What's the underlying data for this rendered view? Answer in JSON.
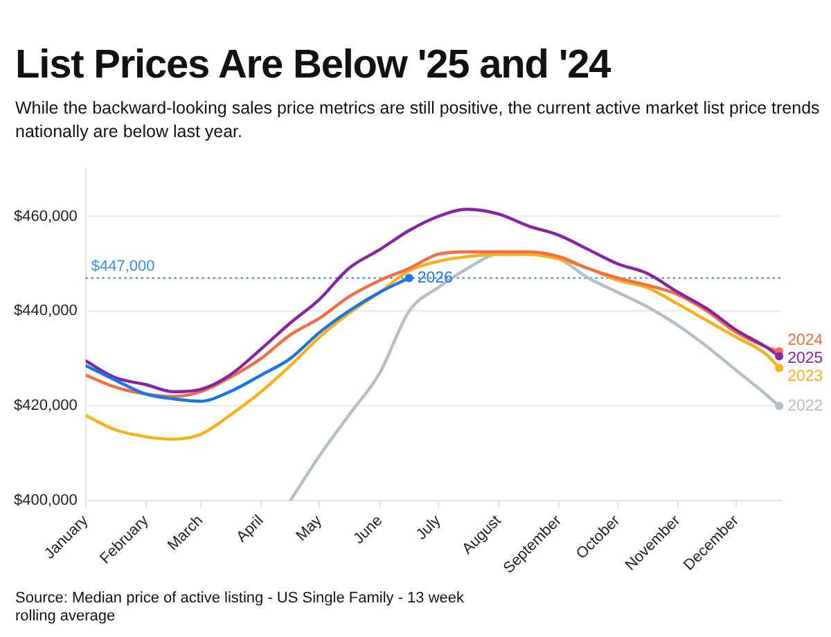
{
  "chart_data": {
    "type": "line",
    "title": "List Prices Are Below '25 and '24",
    "subtitle": "While the backward-looking sales price metrics are still positive, the current active market list price trends nationally are below last year.",
    "annotations": [
      "Source: Median price of active listing - US Single Family - 13 week rolling average"
    ],
    "x": [
      "--01-01",
      "--01-16",
      "--02-01",
      "--02-15",
      "--03-01",
      "--03-16",
      "--04-01",
      "--04-16",
      "--05-01",
      "--05-16",
      "--06-01",
      "--06-16",
      "--07-01",
      "--07-16",
      "--08-01",
      "--08-16",
      "--09-01",
      "--09-16",
      "--10-01",
      "--10-16",
      "--11-01",
      "--11-16",
      "--12-01",
      "--12-16",
      "--12-23"
    ],
    "series": [
      {
        "name": "2022",
        "color": "#b5bfc8",
        "x": [
          "--04-16",
          "--05-01",
          "--05-16",
          "--06-01",
          "--06-16",
          "--07-01",
          "--07-16",
          "--08-01",
          "--08-16",
          "--09-01",
          "--09-16",
          "--10-01",
          "--10-16",
          "--11-01",
          "--11-16",
          "--12-01",
          "--12-16",
          "--12-23"
        ],
        "values": [
          400000,
          409500,
          418000,
          427000,
          440000,
          445000,
          449000,
          452000,
          452000,
          451000,
          447000,
          444000,
          441000,
          437000,
          432500,
          427500,
          422500,
          420000
        ]
      },
      {
        "name": "2023",
        "color": "#fbb016",
        "values": [
          418000,
          415000,
          413500,
          413000,
          414000,
          418000,
          423000,
          428500,
          434500,
          439500,
          444000,
          448500,
          450500,
          451500,
          452000,
          452000,
          451000,
          449000,
          446500,
          445000,
          441500,
          438000,
          434500,
          431000,
          428000
        ]
      },
      {
        "name": "2024",
        "color": "#f46d43",
        "values": [
          426500,
          424000,
          422500,
          422000,
          423000,
          426000,
          430000,
          435000,
          438500,
          443000,
          446500,
          449000,
          452000,
          452500,
          452500,
          452500,
          451500,
          449000,
          447000,
          445500,
          443500,
          440000,
          435500,
          432500,
          431500
        ]
      },
      {
        "name": "2025",
        "color": "#8a22a8",
        "values": [
          429500,
          426000,
          424500,
          423000,
          423500,
          426500,
          432000,
          437500,
          442500,
          449000,
          453000,
          457000,
          460000,
          461500,
          460500,
          458000,
          456000,
          453000,
          450000,
          448000,
          444000,
          440500,
          436000,
          432500,
          430500
        ]
      },
      {
        "name": "2026",
        "color": "#1976e8",
        "x": [
          "--01-01",
          "--01-16",
          "--02-01",
          "--02-15",
          "--03-01",
          "--03-16",
          "--04-01",
          "--04-16",
          "--05-01",
          "--05-16",
          "--06-01",
          "--06-16"
        ],
        "values": [
          428500,
          425500,
          422500,
          421500,
          421000,
          423000,
          426500,
          430000,
          435500,
          440000,
          444000,
          447000
        ]
      }
    ],
    "xlim": [
      "--01-01",
      "--12-24"
    ],
    "xticks": [
      {
        "value": "--01-01",
        "label": "January"
      },
      {
        "value": "--02-01",
        "label": "February"
      },
      {
        "value": "--03-01",
        "label": "March"
      },
      {
        "value": "--04-01",
        "label": "April"
      },
      {
        "value": "--05-01",
        "label": "May"
      },
      {
        "value": "--06-01",
        "label": "June"
      },
      {
        "value": "--07-01",
        "label": "July"
      },
      {
        "value": "--08-01",
        "label": "August"
      },
      {
        "value": "--09-01",
        "label": "September"
      },
      {
        "value": "--10-01",
        "label": "October"
      },
      {
        "value": "--11-01",
        "label": "November"
      },
      {
        "value": "--12-01",
        "label": "December"
      }
    ],
    "ylim": [
      400000,
      470000
    ],
    "yticks": [
      {
        "value": 400000,
        "label": "$400,000"
      },
      {
        "value": 420000,
        "label": "$420,000"
      },
      {
        "value": 440000,
        "label": "$440,000"
      },
      {
        "value": 460000,
        "label": "$460,000"
      }
    ],
    "ref_lines": [
      {
        "axis": "y",
        "value": 447000,
        "label": "$447,000",
        "color": "#3d8fe6",
        "line_style": "dotted"
      }
    ],
    "grid": "y"
  }
}
